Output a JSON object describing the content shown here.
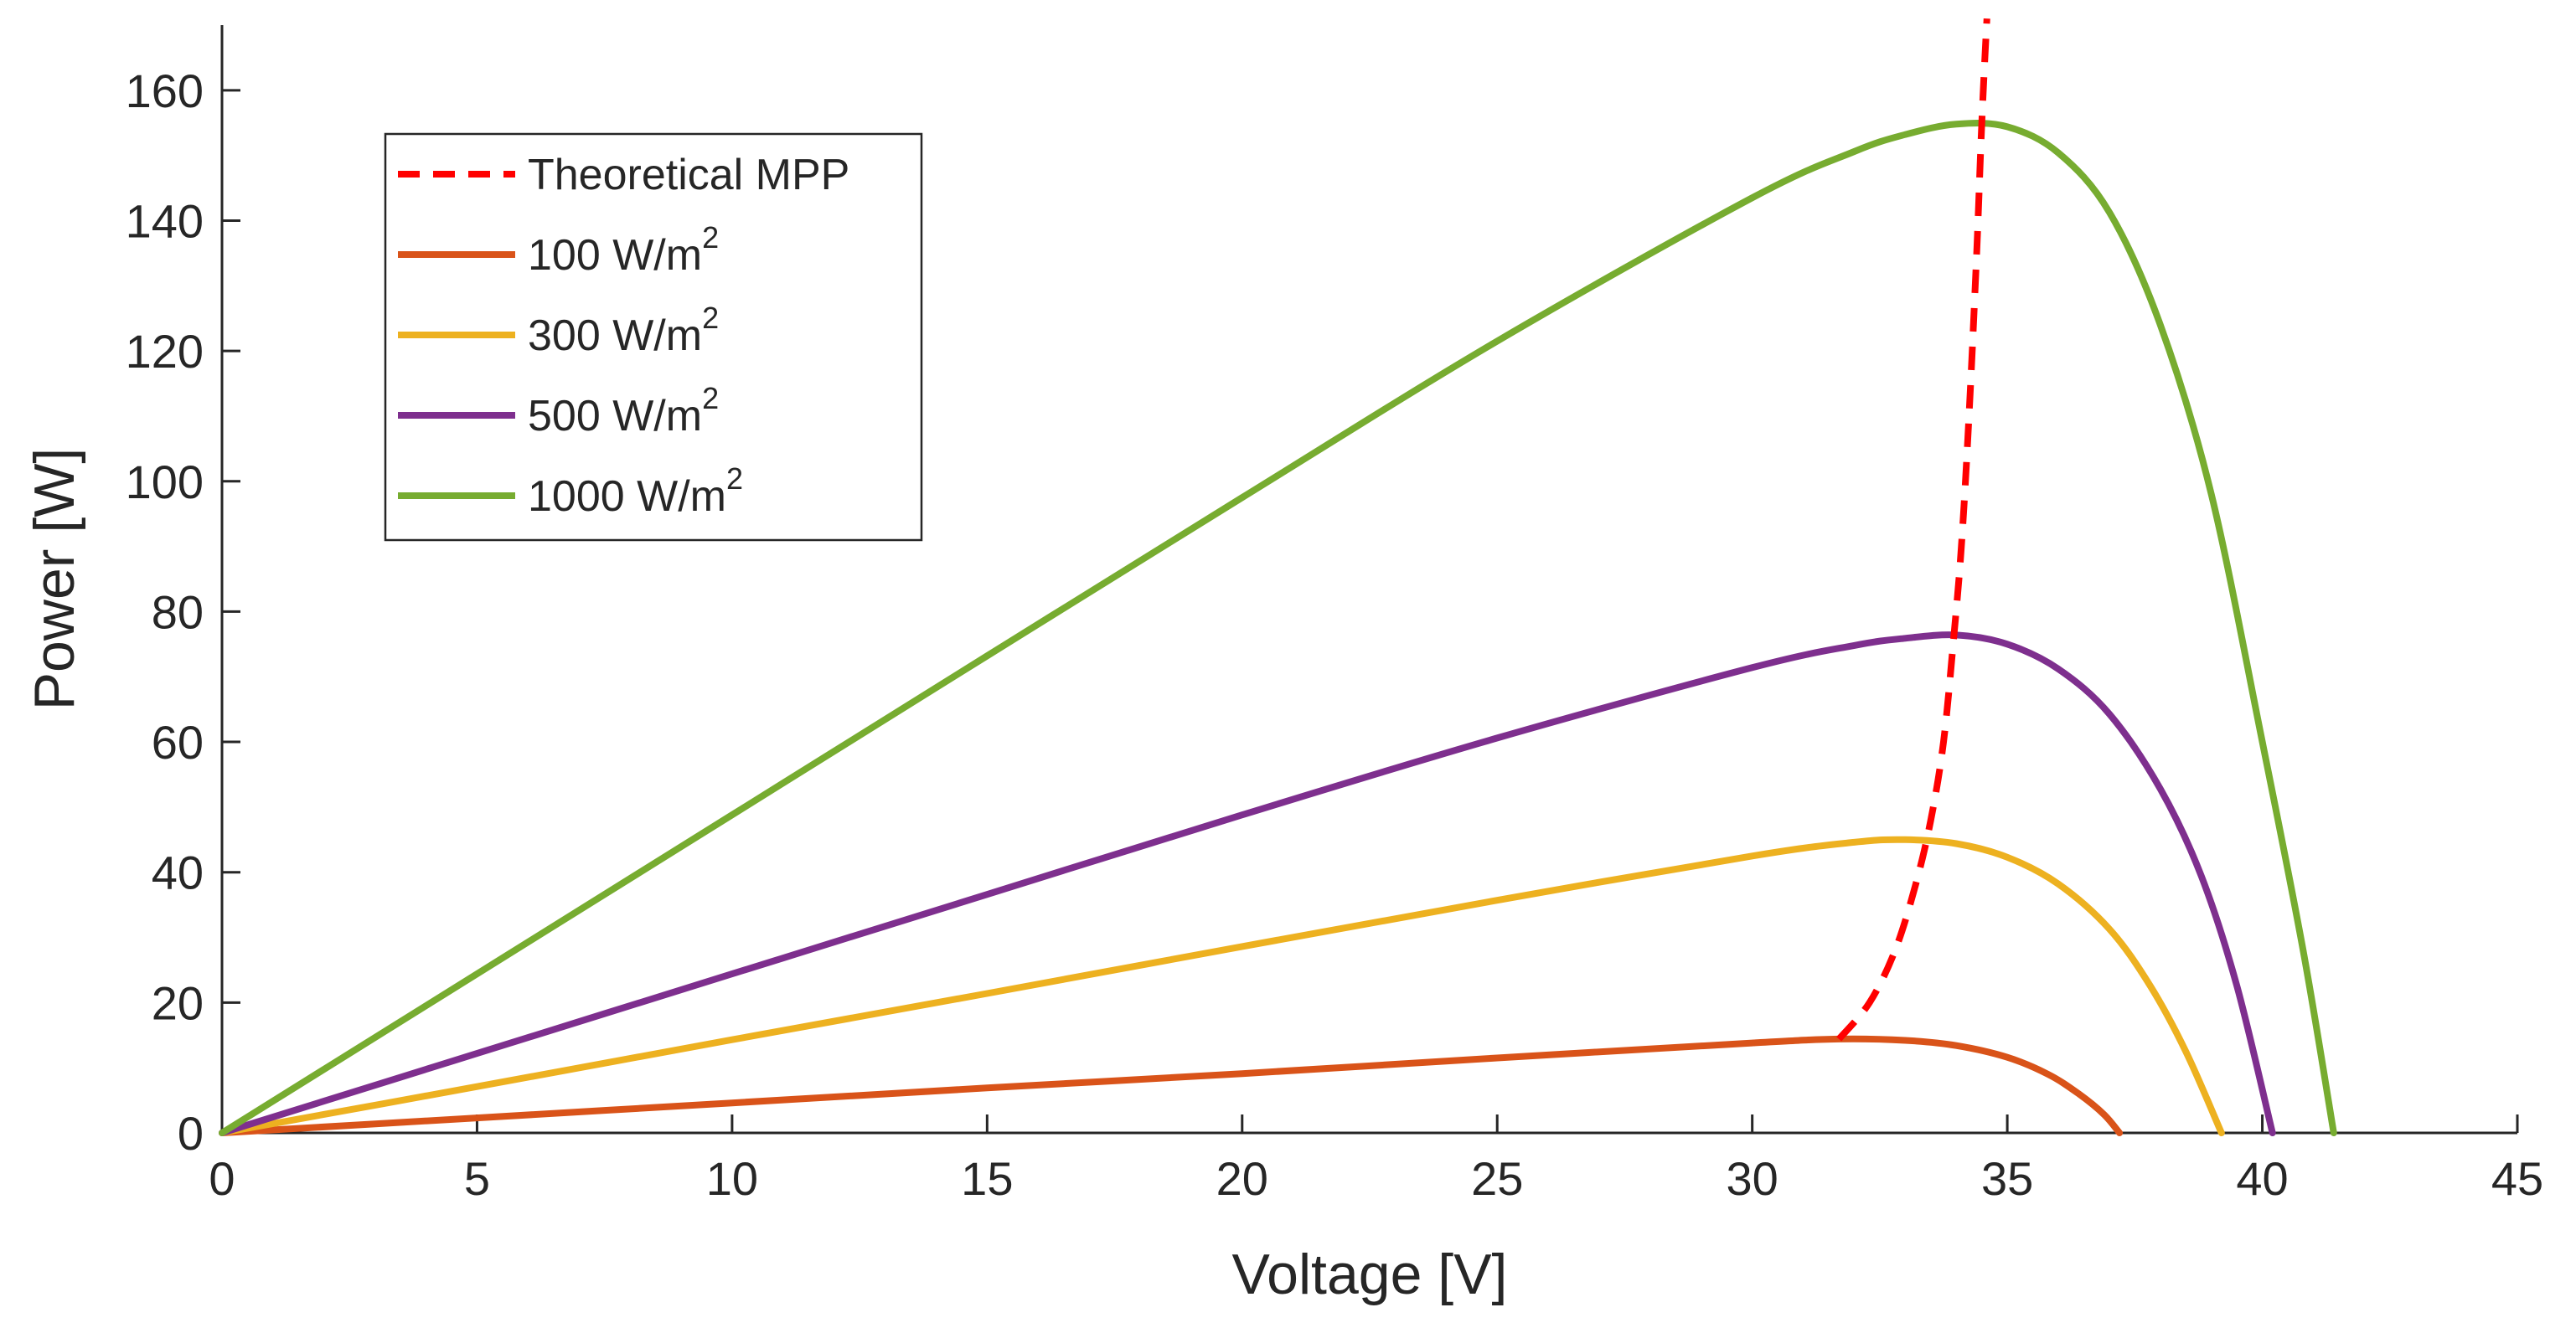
{
  "chart_data": {
    "type": "line",
    "title": "",
    "xlabel": "Voltage [V]",
    "ylabel": "Power [W]",
    "xlim": [
      0,
      45
    ],
    "ylim": [
      0,
      170
    ],
    "xticks": [
      0,
      5,
      10,
      15,
      20,
      25,
      30,
      35,
      40,
      45
    ],
    "yticks": [
      0,
      20,
      40,
      60,
      80,
      100,
      120,
      140,
      160
    ],
    "grid": false,
    "legend_position": "top-left",
    "legend": [
      {
        "label": "Theoretical MPP",
        "base": "Theoretical MPP",
        "sup": "",
        "color": "#FF0000",
        "dash": true
      },
      {
        "label": "100 W/m2",
        "base": "100 W/m",
        "sup": "2",
        "color": "#D95319",
        "dash": false
      },
      {
        "label": "300 W/m2",
        "base": "300 W/m",
        "sup": "2",
        "color": "#EDB120",
        "dash": false
      },
      {
        "label": "500 W/m2",
        "base": "500 W/m",
        "sup": "2",
        "color": "#7E2F8E",
        "dash": false
      },
      {
        "label": "1000 W/m2",
        "base": "1000 W/m",
        "sup": "2",
        "color": "#77AC30",
        "dash": false
      }
    ],
    "series": [
      {
        "name": "100 W/m2",
        "color": "#D95319",
        "style": "solid",
        "voc": 37.2,
        "x": [
          0,
          5,
          10,
          15,
          20,
          25,
          30,
          31.7,
          33,
          34,
          35,
          35.8,
          36.4,
          36.9,
          37.2
        ],
        "y": [
          0,
          2.3,
          4.6,
          6.9,
          9.1,
          11.5,
          13.8,
          14.4,
          14.2,
          13.4,
          11.6,
          9.0,
          6.0,
          2.8,
          0
        ]
      },
      {
        "name": "300 W/m2",
        "color": "#EDB120",
        "style": "solid",
        "voc": 39.2,
        "x": [
          0,
          5,
          10,
          15,
          20,
          25,
          30,
          32,
          33,
          34,
          35,
          36,
          37,
          37.8,
          38.5,
          39.2
        ],
        "y": [
          0,
          7.1,
          14.3,
          21.4,
          28.6,
          35.7,
          42.5,
          44.6,
          45.0,
          44.4,
          42.3,
          38.2,
          31.3,
          22.6,
          12.5,
          0
        ]
      },
      {
        "name": "500 W/m2",
        "color": "#7E2F8E",
        "style": "solid",
        "voc": 40.2,
        "x": [
          0,
          5,
          10,
          15,
          20,
          25,
          30,
          32,
          33,
          34,
          35,
          36,
          37,
          38,
          38.8,
          39.5,
          40.2
        ],
        "y": [
          0,
          12.2,
          24.4,
          36.6,
          48.8,
          60.6,
          71.4,
          74.8,
          75.9,
          76.4,
          75.0,
          71.2,
          64.3,
          52.8,
          39.5,
          22.6,
          0
        ]
      },
      {
        "name": "1000 W/m2",
        "color": "#77AC30",
        "style": "solid",
        "voc": 41.4,
        "x": [
          0,
          5,
          10,
          15,
          20,
          25,
          30,
          32,
          33,
          34,
          35,
          36,
          37,
          38,
          39,
          40,
          40.8,
          41.4
        ],
        "y": [
          0,
          24.4,
          48.8,
          73.2,
          97.5,
          121.5,
          143.5,
          150.6,
          153.2,
          154.8,
          154.4,
          150.4,
          141.3,
          124.0,
          98.0,
          60.0,
          28.0,
          0
        ]
      },
      {
        "name": "Theoretical MPP",
        "color": "#FF0000",
        "style": "dashed",
        "x": [
          31.7,
          32.3,
          32.8,
          33.2,
          33.5,
          33.75,
          33.95,
          34.1,
          34.25,
          34.4,
          34.5,
          34.6
        ],
        "y": [
          14.4,
          20,
          28,
          38,
          48,
          60,
          76,
          90,
          110,
          135,
          155,
          171
        ]
      }
    ]
  }
}
